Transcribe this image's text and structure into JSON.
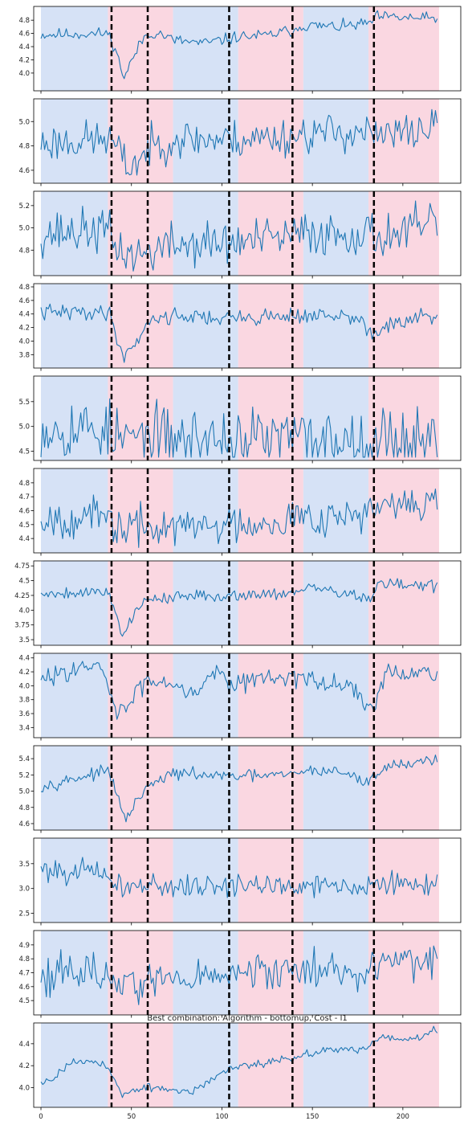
{
  "chart_data": {
    "type": "line",
    "title": "Best combination: Algorithm - bottomup, Cost - l1",
    "n_points": 220,
    "x_ticks": [
      0,
      50,
      100,
      150,
      200
    ],
    "xlim": [
      -4,
      232
    ],
    "change_points": [
      39,
      59,
      104,
      139,
      184
    ],
    "segments": [
      {
        "start": 0,
        "end": 37,
        "color": "#d6e2f6"
      },
      {
        "start": 37,
        "end": 73,
        "color": "#fad7e1"
      },
      {
        "start": 73,
        "end": 109,
        "color": "#d6e2f6"
      },
      {
        "start": 109,
        "end": 145,
        "color": "#fad7e1"
      },
      {
        "start": 145,
        "end": 181,
        "color": "#d6e2f6"
      },
      {
        "start": 181,
        "end": 220,
        "color": "#fad7e1"
      }
    ],
    "colors": {
      "line": "#1f77b4",
      "change_point": "#000000"
    },
    "panels": [
      {
        "name": "signal-1",
        "ylim": [
          3.78,
          4.96
        ],
        "yticks": [
          4.0,
          4.2,
          4.4,
          4.6,
          4.8
        ],
        "base": [
          [
            0,
            4.58
          ],
          [
            37,
            4.6
          ],
          [
            40,
            4.45
          ],
          [
            46,
            3.93
          ],
          [
            50,
            4.18
          ],
          [
            57,
            4.55
          ],
          [
            64,
            4.62
          ],
          [
            73,
            4.5
          ],
          [
            90,
            4.45
          ],
          [
            104,
            4.52
          ],
          [
            109,
            4.55
          ],
          [
            125,
            4.57
          ],
          [
            139,
            4.65
          ],
          [
            145,
            4.72
          ],
          [
            165,
            4.7
          ],
          [
            181,
            4.75
          ],
          [
            186,
            4.85
          ],
          [
            220,
            4.82
          ]
        ],
        "noise": 0.045,
        "seed": 11
      },
      {
        "name": "signal-2",
        "ylim": [
          4.52,
          5.16
        ],
        "yticks": [
          4.6,
          4.8,
          5.0
        ],
        "base": [
          [
            0,
            4.82
          ],
          [
            37,
            4.86
          ],
          [
            41,
            4.8
          ],
          [
            48,
            4.62
          ],
          [
            55,
            4.7
          ],
          [
            60,
            4.78
          ],
          [
            73,
            4.86
          ],
          [
            104,
            4.85
          ],
          [
            139,
            4.88
          ],
          [
            145,
            4.9
          ],
          [
            181,
            4.92
          ],
          [
            184,
            4.86
          ],
          [
            220,
            4.96
          ]
        ],
        "noise": 0.08,
        "seed": 23
      },
      {
        "name": "signal-3",
        "ylim": [
          4.6,
          5.3
        ],
        "yticks": [
          4.8,
          5.0,
          5.2
        ],
        "base": [
          [
            0,
            4.95
          ],
          [
            37,
            4.98
          ],
          [
            40,
            4.85
          ],
          [
            50,
            4.75
          ],
          [
            59,
            4.78
          ],
          [
            73,
            4.85
          ],
          [
            104,
            4.86
          ],
          [
            139,
            4.92
          ],
          [
            145,
            4.95
          ],
          [
            181,
            4.95
          ],
          [
            184,
            4.92
          ],
          [
            220,
            5.02
          ]
        ],
        "noise": 0.1,
        "seed": 37
      },
      {
        "name": "signal-4",
        "ylim": [
          3.65,
          4.8
        ],
        "yticks": [
          3.8,
          4.0,
          4.2,
          4.4,
          4.6,
          4.8
        ],
        "base": [
          [
            0,
            4.42
          ],
          [
            37,
            4.43
          ],
          [
            40,
            4.25
          ],
          [
            45,
            3.78
          ],
          [
            52,
            3.95
          ],
          [
            59,
            4.3
          ],
          [
            73,
            4.38
          ],
          [
            104,
            4.33
          ],
          [
            139,
            4.38
          ],
          [
            165,
            4.36
          ],
          [
            178,
            4.3
          ],
          [
            183,
            4.05
          ],
          [
            188,
            4.2
          ],
          [
            220,
            4.4
          ]
        ],
        "noise": 0.06,
        "seed": 41
      },
      {
        "name": "signal-5",
        "ylim": [
          4.38,
          5.95
        ],
        "yticks": [
          4.5,
          5.0,
          5.5
        ],
        "base": [
          [
            0,
            5.0
          ],
          [
            37,
            4.95
          ],
          [
            40,
            4.75
          ],
          [
            220,
            4.75
          ]
        ],
        "noise": 0.32,
        "seed": 53
      },
      {
        "name": "signal-6",
        "ylim": [
          4.32,
          4.88
        ],
        "yticks": [
          4.4,
          4.5,
          4.6,
          4.7,
          4.8
        ],
        "base": [
          [
            0,
            4.55
          ],
          [
            37,
            4.55
          ],
          [
            40,
            4.48
          ],
          [
            73,
            4.48
          ],
          [
            104,
            4.5
          ],
          [
            139,
            4.55
          ],
          [
            181,
            4.58
          ],
          [
            184,
            4.6
          ],
          [
            220,
            4.68
          ]
        ],
        "noise": 0.07,
        "seed": 67
      },
      {
        "name": "signal-7",
        "ylim": [
          3.46,
          4.78
        ],
        "yticks": [
          3.5,
          3.75,
          4.0,
          4.25,
          4.5,
          4.75
        ],
        "base": [
          [
            0,
            4.28
          ],
          [
            37,
            4.32
          ],
          [
            40,
            4.1
          ],
          [
            45,
            3.58
          ],
          [
            52,
            3.95
          ],
          [
            59,
            4.2
          ],
          [
            73,
            4.22
          ],
          [
            104,
            4.25
          ],
          [
            139,
            4.3
          ],
          [
            150,
            4.38
          ],
          [
            175,
            4.25
          ],
          [
            183,
            4.15
          ],
          [
            186,
            4.45
          ],
          [
            220,
            4.4
          ]
        ],
        "noise": 0.05,
        "seed": 79
      },
      {
        "name": "signal-8",
        "ylim": [
          3.3,
          4.42
        ],
        "yticks": [
          3.4,
          3.6,
          3.8,
          4.0,
          4.2,
          4.4
        ],
        "base": [
          [
            0,
            4.05
          ],
          [
            15,
            4.25
          ],
          [
            32,
            4.25
          ],
          [
            37,
            4.05
          ],
          [
            42,
            3.55
          ],
          [
            50,
            3.8
          ],
          [
            59,
            4.1
          ],
          [
            73,
            4.05
          ],
          [
            85,
            3.9
          ],
          [
            97,
            4.25
          ],
          [
            104,
            4.05
          ],
          [
            139,
            4.15
          ],
          [
            150,
            4.05
          ],
          [
            172,
            4.0
          ],
          [
            180,
            3.75
          ],
          [
            184,
            3.6
          ],
          [
            190,
            4.15
          ],
          [
            220,
            4.2
          ]
        ],
        "noise": 0.07,
        "seed": 83
      },
      {
        "name": "signal-9",
        "ylim": [
          4.56,
          5.52
        ],
        "yticks": [
          4.6,
          4.8,
          5.0,
          5.2,
          5.4
        ],
        "base": [
          [
            0,
            5.06
          ],
          [
            37,
            5.25
          ],
          [
            40,
            5.1
          ],
          [
            46,
            4.65
          ],
          [
            59,
            5.05
          ],
          [
            73,
            5.22
          ],
          [
            104,
            5.18
          ],
          [
            139,
            5.2
          ],
          [
            145,
            5.25
          ],
          [
            165,
            5.25
          ],
          [
            180,
            5.1
          ],
          [
            190,
            5.3
          ],
          [
            220,
            5.4
          ]
        ],
        "noise": 0.035,
        "seed": 97
      },
      {
        "name": "signal-10",
        "ylim": [
          2.38,
          3.95
        ],
        "yticks": [
          2.5,
          3.0,
          3.5
        ],
        "base": [
          [
            0,
            3.4
          ],
          [
            37,
            3.3
          ],
          [
            40,
            3.05
          ],
          [
            60,
            3.05
          ],
          [
            220,
            3.08
          ]
        ],
        "noise": 0.12,
        "seed": 101
      },
      {
        "name": "signal-11",
        "ylim": [
          4.42,
          4.98
        ],
        "yticks": [
          4.5,
          4.6,
          4.7,
          4.8,
          4.9
        ],
        "base": [
          [
            0,
            4.7
          ],
          [
            37,
            4.7
          ],
          [
            40,
            4.62
          ],
          [
            73,
            4.65
          ],
          [
            104,
            4.68
          ],
          [
            139,
            4.72
          ],
          [
            181,
            4.72
          ],
          [
            184,
            4.76
          ],
          [
            220,
            4.8
          ]
        ],
        "noise": 0.07,
        "seed": 113
      },
      {
        "name": "signal-12",
        "ylim": [
          3.85,
          4.56
        ],
        "yticks": [
          4.0,
          4.2,
          4.4
        ],
        "base": [
          [
            0,
            4.04
          ],
          [
            8,
            4.1
          ],
          [
            15,
            4.22
          ],
          [
            30,
            4.25
          ],
          [
            37,
            4.18
          ],
          [
            45,
            3.94
          ],
          [
            59,
            4.0
          ],
          [
            73,
            3.98
          ],
          [
            85,
            3.96
          ],
          [
            104,
            4.18
          ],
          [
            120,
            4.22
          ],
          [
            139,
            4.27
          ],
          [
            160,
            4.35
          ],
          [
            180,
            4.35
          ],
          [
            186,
            4.45
          ],
          [
            210,
            4.45
          ],
          [
            215,
            4.52
          ],
          [
            220,
            4.52
          ]
        ],
        "noise": 0.018,
        "seed": 127
      }
    ]
  }
}
